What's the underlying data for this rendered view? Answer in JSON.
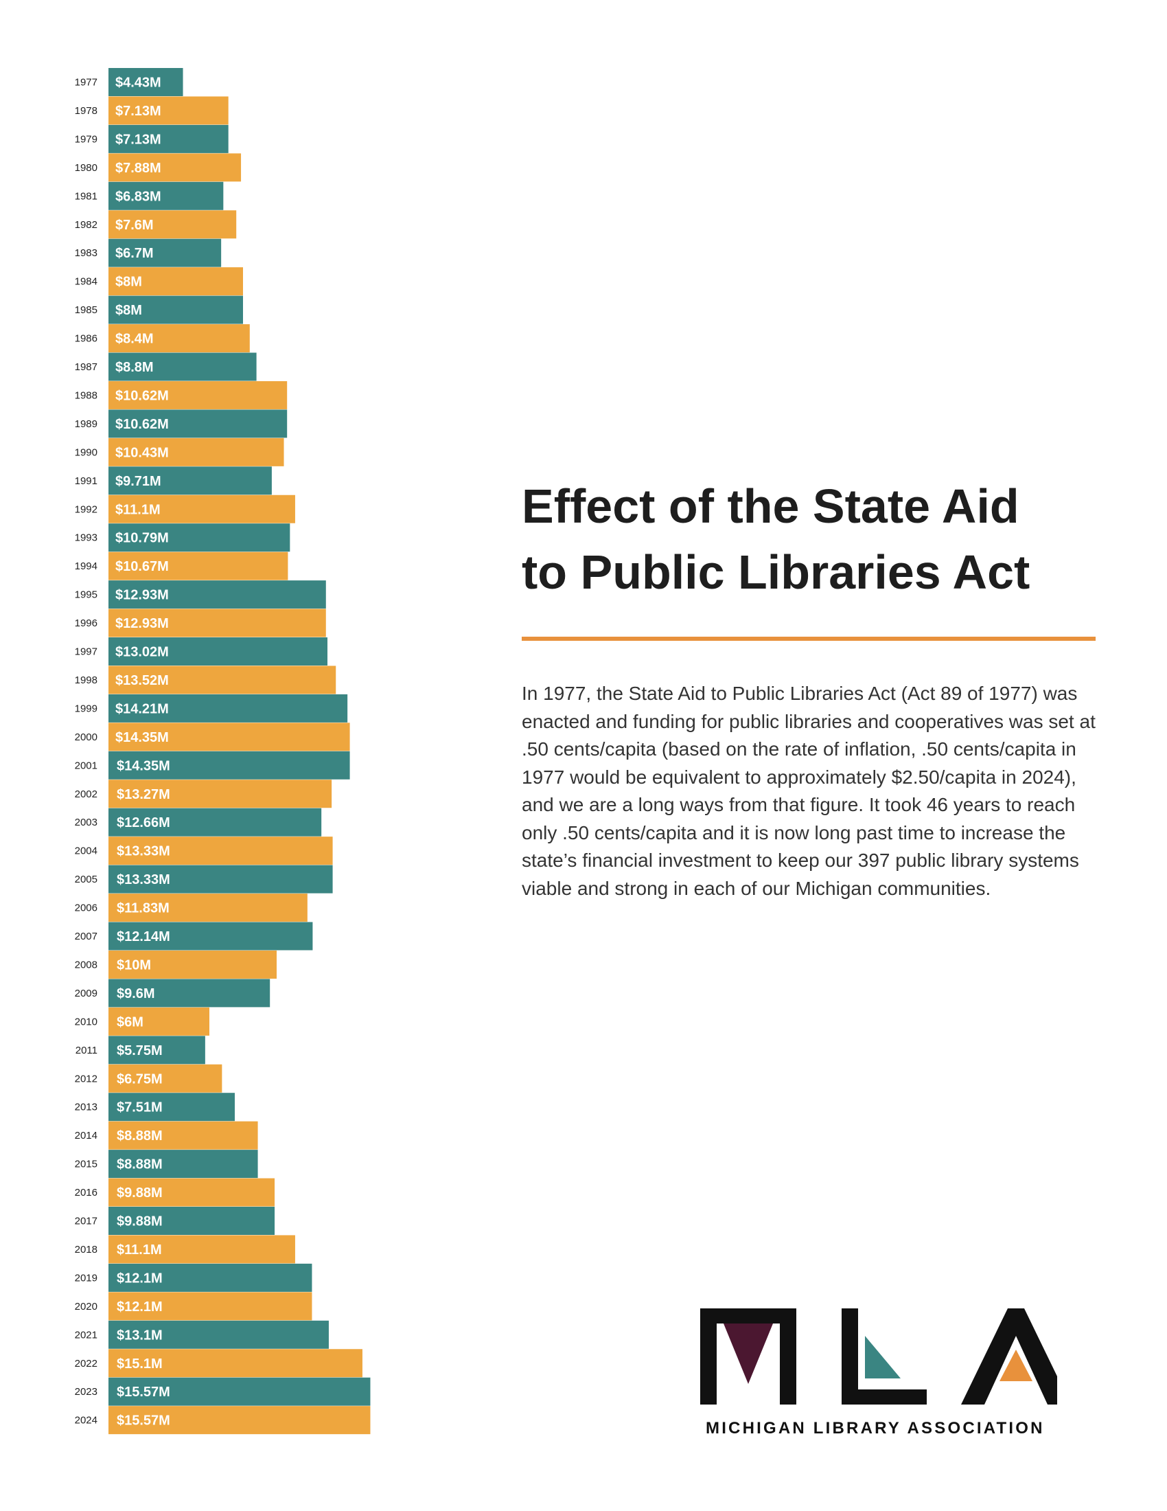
{
  "colors": {
    "teal": "#3a8582",
    "orange": "#eea63e",
    "rule": "#e8913c",
    "logo_dark": "#111111",
    "logo_maroon": "#4b1730"
  },
  "title": [
    "Effect of the State Aid",
    "to Public Libraries Act"
  ],
  "intro": "In 1977, the State Aid to Public Libraries Act  (Act 89 of 1977) was enacted and funding for public libraries and cooperatives was set at .50 cents/capita (based on the rate of inflation, .50 cents/capita in 1977 would be equivalent to approximately $2.50/capita in 2024), and we are a long ways from that figure. It took 46 years to reach only .50 cents/capita and it is now long past time to increase the state’s financial investment to keep our 397 public library systems viable and strong in each of our Michigan communities.",
  "logo": {
    "org_name": "MICHIGAN LIBRARY ASSOCIATION",
    "icons": [
      "mla-monogram-icon"
    ]
  },
  "chart_data": {
    "type": "bar",
    "orientation": "horizontal",
    "title": "",
    "xlabel": "",
    "ylabel": "",
    "xlim": [
      0,
      16
    ],
    "grid": false,
    "legend": "none",
    "categories": [
      "1977",
      "1978",
      "1979",
      "1980",
      "1981",
      "1982",
      "1983",
      "1984",
      "1985",
      "1986",
      "1987",
      "1988",
      "1989",
      "1990",
      "1991",
      "1992",
      "1993",
      "1994",
      "1995",
      "1996",
      "1997",
      "1998",
      "1999",
      "2000",
      "2001",
      "2002",
      "2003",
      "2004",
      "2005",
      "2006",
      "2007",
      "2008",
      "2009",
      "2010",
      "2011",
      "2012",
      "2013",
      "2014",
      "2015",
      "2016",
      "2017",
      "2018",
      "2019",
      "2020",
      "2021",
      "2022",
      "2023",
      "2024"
    ],
    "values": [
      4.43,
      7.13,
      7.13,
      7.88,
      6.83,
      7.6,
      6.7,
      8,
      8,
      8.4,
      8.8,
      10.62,
      10.62,
      10.43,
      9.71,
      11.1,
      10.79,
      10.67,
      12.93,
      12.93,
      13.02,
      13.52,
      14.21,
      14.35,
      14.35,
      13.27,
      12.66,
      13.33,
      13.33,
      11.83,
      12.14,
      10,
      9.6,
      6,
      5.75,
      6.75,
      7.51,
      8.88,
      8.88,
      9.88,
      9.88,
      11.1,
      12.1,
      12.1,
      13.1,
      15.1,
      15.57,
      15.57
    ],
    "labels": [
      "$4.43M",
      "$7.13M",
      "$7.13M",
      "$7.88M",
      "$6.83M",
      "$7.6M",
      "$6.7M",
      "$8M",
      "$8M",
      "$8.4M",
      "$8.8M",
      "$10.62M",
      "$10.62M",
      "$10.43M",
      "$9.71M",
      "$11.1M",
      "$10.79M",
      "$10.67M",
      "$12.93M",
      "$12.93M",
      "$13.02M",
      "$13.52M",
      "$14.21M",
      "$14.35M",
      "$14.35M",
      "$13.27M",
      "$12.66M",
      "$13.33M",
      "$13.33M",
      "$11.83M",
      "$12.14M",
      "$10M",
      "$9.6M",
      "$6M",
      "$5.75M",
      "$6.75M",
      "$7.51M",
      "$8.88M",
      "$8.88M",
      "$9.88M",
      "$9.88M",
      "$11.1M",
      "$12.1M",
      "$12.1M",
      "$13.1M",
      "$15.1M",
      "$15.57M",
      "$15.57M"
    ],
    "bar_colors": "alternating teal / orange, starting with teal"
  }
}
